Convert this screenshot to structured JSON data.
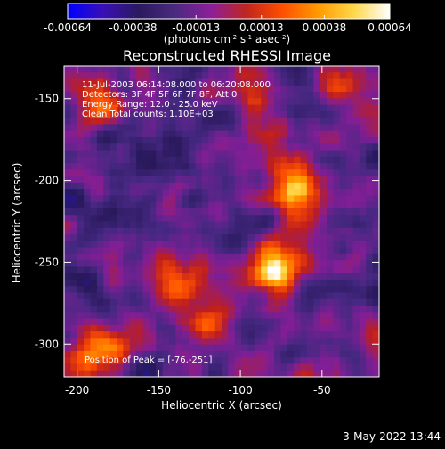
{
  "chart_data": {
    "type": "heatmap",
    "title": "Reconstructed RHESSI Image",
    "xlabel": "Heliocentric X (arcsec)",
    "ylabel": "Heliocentric Y (arcsec)",
    "xlim": [
      -208,
      -15
    ],
    "ylim": [
      -320,
      -130
    ],
    "xticks": [
      -200,
      -150,
      -100,
      -50
    ],
    "yticks": [
      -150,
      -200,
      -250,
      -300
    ],
    "colorbar": {
      "min": -0.00064,
      "max": 0.00064,
      "ticks": [
        "-0.00064",
        "-0.00038",
        "-0.00013",
        "0.00013",
        "0.00038",
        "0.00064"
      ],
      "unit_prefix": "(photons cm",
      "unit_sup1": "-2",
      "unit_mid": " s",
      "unit_sup2": "-1",
      "unit_mid2": " asec",
      "unit_sup3": "-2",
      "unit_suffix": ")",
      "colors": [
        "#0000ff",
        "#3a0fb5",
        "#2a1a5e",
        "#4a2a80",
        "#8c1f9a",
        "#c0261f",
        "#ff4f00",
        "#ff9a00",
        "#ffd84a",
        "#ffffff"
      ]
    },
    "annotations": [
      "11-Jul-2003 06:14:08.000 to 06:20:08.000",
      "Detectors: 3F 4F 5F 6F 7F 8F, Att 0",
      "Energy Range: 12.0 - 25.0 keV",
      "Clean     Total counts: 1.10E+03"
    ],
    "peak_label": "Position of Peak = [-76,-251]",
    "peak": [
      -76,
      -251
    ],
    "grid": false
  },
  "footer": {
    "timestamp": "3-May-2022 13:44"
  }
}
